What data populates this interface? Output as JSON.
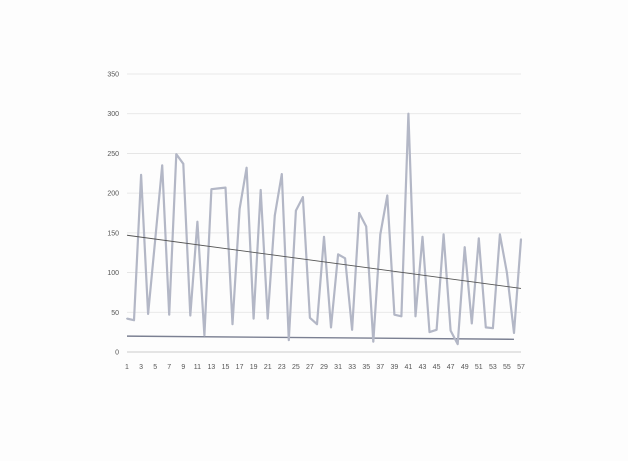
{
  "chart_data": {
    "type": "line",
    "title": "",
    "xlabel": "",
    "ylabel": "",
    "ylim": [
      0,
      350
    ],
    "y_ticks": [
      0,
      50,
      100,
      150,
      200,
      250,
      300,
      350
    ],
    "x_tick_labels": [
      "1",
      "3",
      "5",
      "7",
      "9",
      "11",
      "13",
      "15",
      "17",
      "19",
      "21",
      "23",
      "25",
      "27",
      "29",
      "31",
      "33",
      "35",
      "37",
      "39",
      "41",
      "43",
      "45",
      "47",
      "49",
      "51",
      "53",
      "55",
      "57"
    ],
    "x": [
      1,
      2,
      3,
      4,
      5,
      6,
      7,
      8,
      9,
      10,
      11,
      12,
      13,
      14,
      15,
      16,
      17,
      18,
      19,
      20,
      21,
      22,
      23,
      24,
      25,
      26,
      27,
      28,
      29,
      30,
      31,
      32,
      33,
      34,
      35,
      36,
      37,
      38,
      39,
      40,
      41,
      42,
      43,
      44,
      45,
      46,
      47,
      48,
      49,
      50,
      51,
      52,
      53,
      54,
      55,
      56,
      57
    ],
    "grid": true,
    "series": [
      {
        "values": [
          42,
          40,
          223,
          48,
          140,
          235,
          47,
          249,
          237,
          46,
          164,
          21,
          205,
          206,
          207,
          35,
          180,
          232,
          42,
          204,
          42,
          172,
          224,
          15,
          178,
          195,
          43,
          35,
          145,
          31,
          123,
          118,
          28,
          175,
          158,
          13,
          148,
          197,
          47,
          45,
          300,
          45,
          145,
          25,
          28,
          148,
          27,
          10,
          132,
          36,
          143,
          31,
          30,
          148,
          100,
          24,
          142
        ],
        "color": "#b3b7c6"
      }
    ],
    "trend_line": {
      "x": [
        1,
        57
      ],
      "y": [
        147,
        80
      ],
      "color": "#555555"
    },
    "baseline_line": {
      "x": [
        1,
        56
      ],
      "y": [
        20,
        16
      ],
      "color": "#7b8092"
    }
  }
}
